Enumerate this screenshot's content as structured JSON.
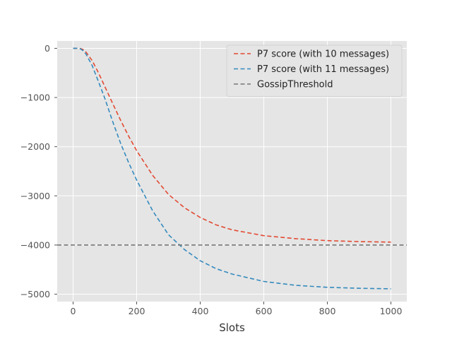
{
  "chart_data": {
    "type": "line",
    "title": "",
    "xlabel": "Slots",
    "ylabel": "",
    "xlim": [
      -50,
      1050
    ],
    "ylim": [
      -5150,
      150
    ],
    "xticks": [
      0,
      200,
      400,
      600,
      800,
      1000
    ],
    "yticks": [
      0,
      -1000,
      -2000,
      -3000,
      -4000,
      -5000
    ],
    "xtick_labels": [
      "0",
      "200",
      "400",
      "600",
      "800",
      "1000"
    ],
    "ytick_labels": [
      "0",
      "−1000",
      "−2000",
      "−3000",
      "−4000",
      "−5000"
    ],
    "grid": true,
    "legend_position": "top-right",
    "style": "ggplot",
    "colors": {
      "background": "#e5e5e5",
      "grid": "#ffffff"
    },
    "series": [
      {
        "name": "P7 score (with 10 messages)",
        "color": "#e24a33",
        "dash": "dashed",
        "x": [
          0,
          20,
          30,
          40,
          60,
          80,
          100,
          125,
          150,
          175,
          200,
          250,
          300,
          350,
          400,
          450,
          500,
          600,
          700,
          800,
          900,
          1000
        ],
        "y": [
          0,
          0,
          -20,
          -70,
          -250,
          -500,
          -780,
          -1130,
          -1470,
          -1790,
          -2080,
          -2580,
          -2970,
          -3240,
          -3440,
          -3590,
          -3690,
          -3810,
          -3870,
          -3910,
          -3930,
          -3940
        ]
      },
      {
        "name": "P7 score (with 11 messages)",
        "color": "#348abd",
        "dash": "dashed",
        "x": [
          0,
          20,
          30,
          40,
          60,
          80,
          100,
          125,
          150,
          175,
          200,
          250,
          300,
          350,
          400,
          450,
          500,
          600,
          700,
          800,
          900,
          1000
        ],
        "y": [
          0,
          0,
          -40,
          -110,
          -350,
          -680,
          -1020,
          -1500,
          -1940,
          -2330,
          -2680,
          -3300,
          -3790,
          -4090,
          -4320,
          -4480,
          -4590,
          -4740,
          -4820,
          -4860,
          -4880,
          -4890
        ]
      },
      {
        "name": "GossipThreshold",
        "color": "#777777",
        "dash": "dashed",
        "x": [
          -50,
          1050
        ],
        "y": [
          -4000,
          -4000
        ]
      }
    ]
  }
}
